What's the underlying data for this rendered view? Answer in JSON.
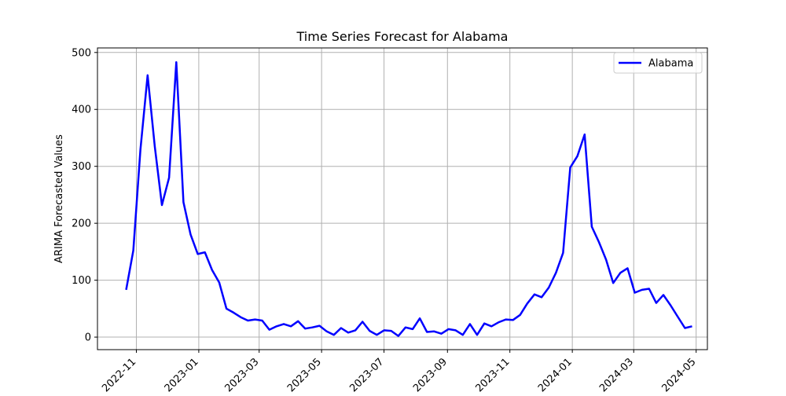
{
  "chart_data": {
    "type": "line",
    "title": "Time Series Forecast for Alabama",
    "xlabel": "",
    "ylabel": "ARIMA Forecasted Values",
    "grid": true,
    "legend_position": "top-right",
    "xlim": [
      "2022-09-24",
      "2024-05-12"
    ],
    "ylim": [
      -22,
      508
    ],
    "x_ticks": [
      "2022-11",
      "2023-01",
      "2023-03",
      "2023-05",
      "2023-07",
      "2023-09",
      "2023-11",
      "2024-01",
      "2024-03",
      "2024-05"
    ],
    "y_ticks": [
      0,
      100,
      200,
      300,
      400,
      500
    ],
    "series": [
      {
        "name": "Alabama",
        "color": "#0000ff",
        "points": [
          [
            "2022-10-22",
            83
          ],
          [
            "2022-10-29",
            152
          ],
          [
            "2022-11-05",
            330
          ],
          [
            "2022-11-12",
            460
          ],
          [
            "2022-11-19",
            335
          ],
          [
            "2022-11-26",
            232
          ],
          [
            "2022-12-03",
            280
          ],
          [
            "2022-12-10",
            483
          ],
          [
            "2022-12-17",
            237
          ],
          [
            "2022-12-24",
            180
          ],
          [
            "2022-12-31",
            146
          ],
          [
            "2023-01-07",
            149
          ],
          [
            "2023-01-14",
            118
          ],
          [
            "2023-01-21",
            96
          ],
          [
            "2023-01-28",
            50
          ],
          [
            "2023-02-04",
            43
          ],
          [
            "2023-02-11",
            35
          ],
          [
            "2023-02-18",
            29
          ],
          [
            "2023-02-25",
            31
          ],
          [
            "2023-03-04",
            29
          ],
          [
            "2023-03-11",
            13
          ],
          [
            "2023-03-18",
            19
          ],
          [
            "2023-03-25",
            23
          ],
          [
            "2023-04-01",
            19
          ],
          [
            "2023-04-08",
            28
          ],
          [
            "2023-04-15",
            15
          ],
          [
            "2023-04-22",
            17
          ],
          [
            "2023-04-29",
            20
          ],
          [
            "2023-05-06",
            10
          ],
          [
            "2023-05-13",
            4
          ],
          [
            "2023-05-20",
            16
          ],
          [
            "2023-05-27",
            8
          ],
          [
            "2023-06-03",
            12
          ],
          [
            "2023-06-10",
            27
          ],
          [
            "2023-06-17",
            11
          ],
          [
            "2023-06-24",
            4
          ],
          [
            "2023-07-01",
            12
          ],
          [
            "2023-07-08",
            11
          ],
          [
            "2023-07-15",
            2
          ],
          [
            "2023-07-22",
            17
          ],
          [
            "2023-07-29",
            14
          ],
          [
            "2023-08-05",
            33
          ],
          [
            "2023-08-12",
            9
          ],
          [
            "2023-08-19",
            10
          ],
          [
            "2023-08-26",
            6
          ],
          [
            "2023-09-02",
            14
          ],
          [
            "2023-09-09",
            12
          ],
          [
            "2023-09-16",
            4
          ],
          [
            "2023-09-23",
            23
          ],
          [
            "2023-09-30",
            4
          ],
          [
            "2023-10-07",
            24
          ],
          [
            "2023-10-14",
            19
          ],
          [
            "2023-10-21",
            26
          ],
          [
            "2023-10-28",
            31
          ],
          [
            "2023-11-04",
            30
          ],
          [
            "2023-11-11",
            39
          ],
          [
            "2023-11-18",
            59
          ],
          [
            "2023-11-25",
            75
          ],
          [
            "2023-12-02",
            70
          ],
          [
            "2023-12-09",
            87
          ],
          [
            "2023-12-16",
            113
          ],
          [
            "2023-12-23",
            148
          ],
          [
            "2023-12-30",
            298
          ],
          [
            "2024-01-06",
            318
          ],
          [
            "2024-01-13",
            356
          ],
          [
            "2024-01-20",
            194
          ],
          [
            "2024-01-27",
            167
          ],
          [
            "2024-02-03",
            136
          ],
          [
            "2024-02-10",
            95
          ],
          [
            "2024-02-17",
            113
          ],
          [
            "2024-02-24",
            121
          ],
          [
            "2024-03-02",
            78
          ],
          [
            "2024-03-09",
            83
          ],
          [
            "2024-03-16",
            85
          ],
          [
            "2024-03-23",
            60
          ],
          [
            "2024-03-30",
            74
          ],
          [
            "2024-04-06",
            56
          ],
          [
            "2024-04-13",
            36
          ],
          [
            "2024-04-20",
            16
          ],
          [
            "2024-04-27",
            19
          ]
        ]
      }
    ]
  }
}
